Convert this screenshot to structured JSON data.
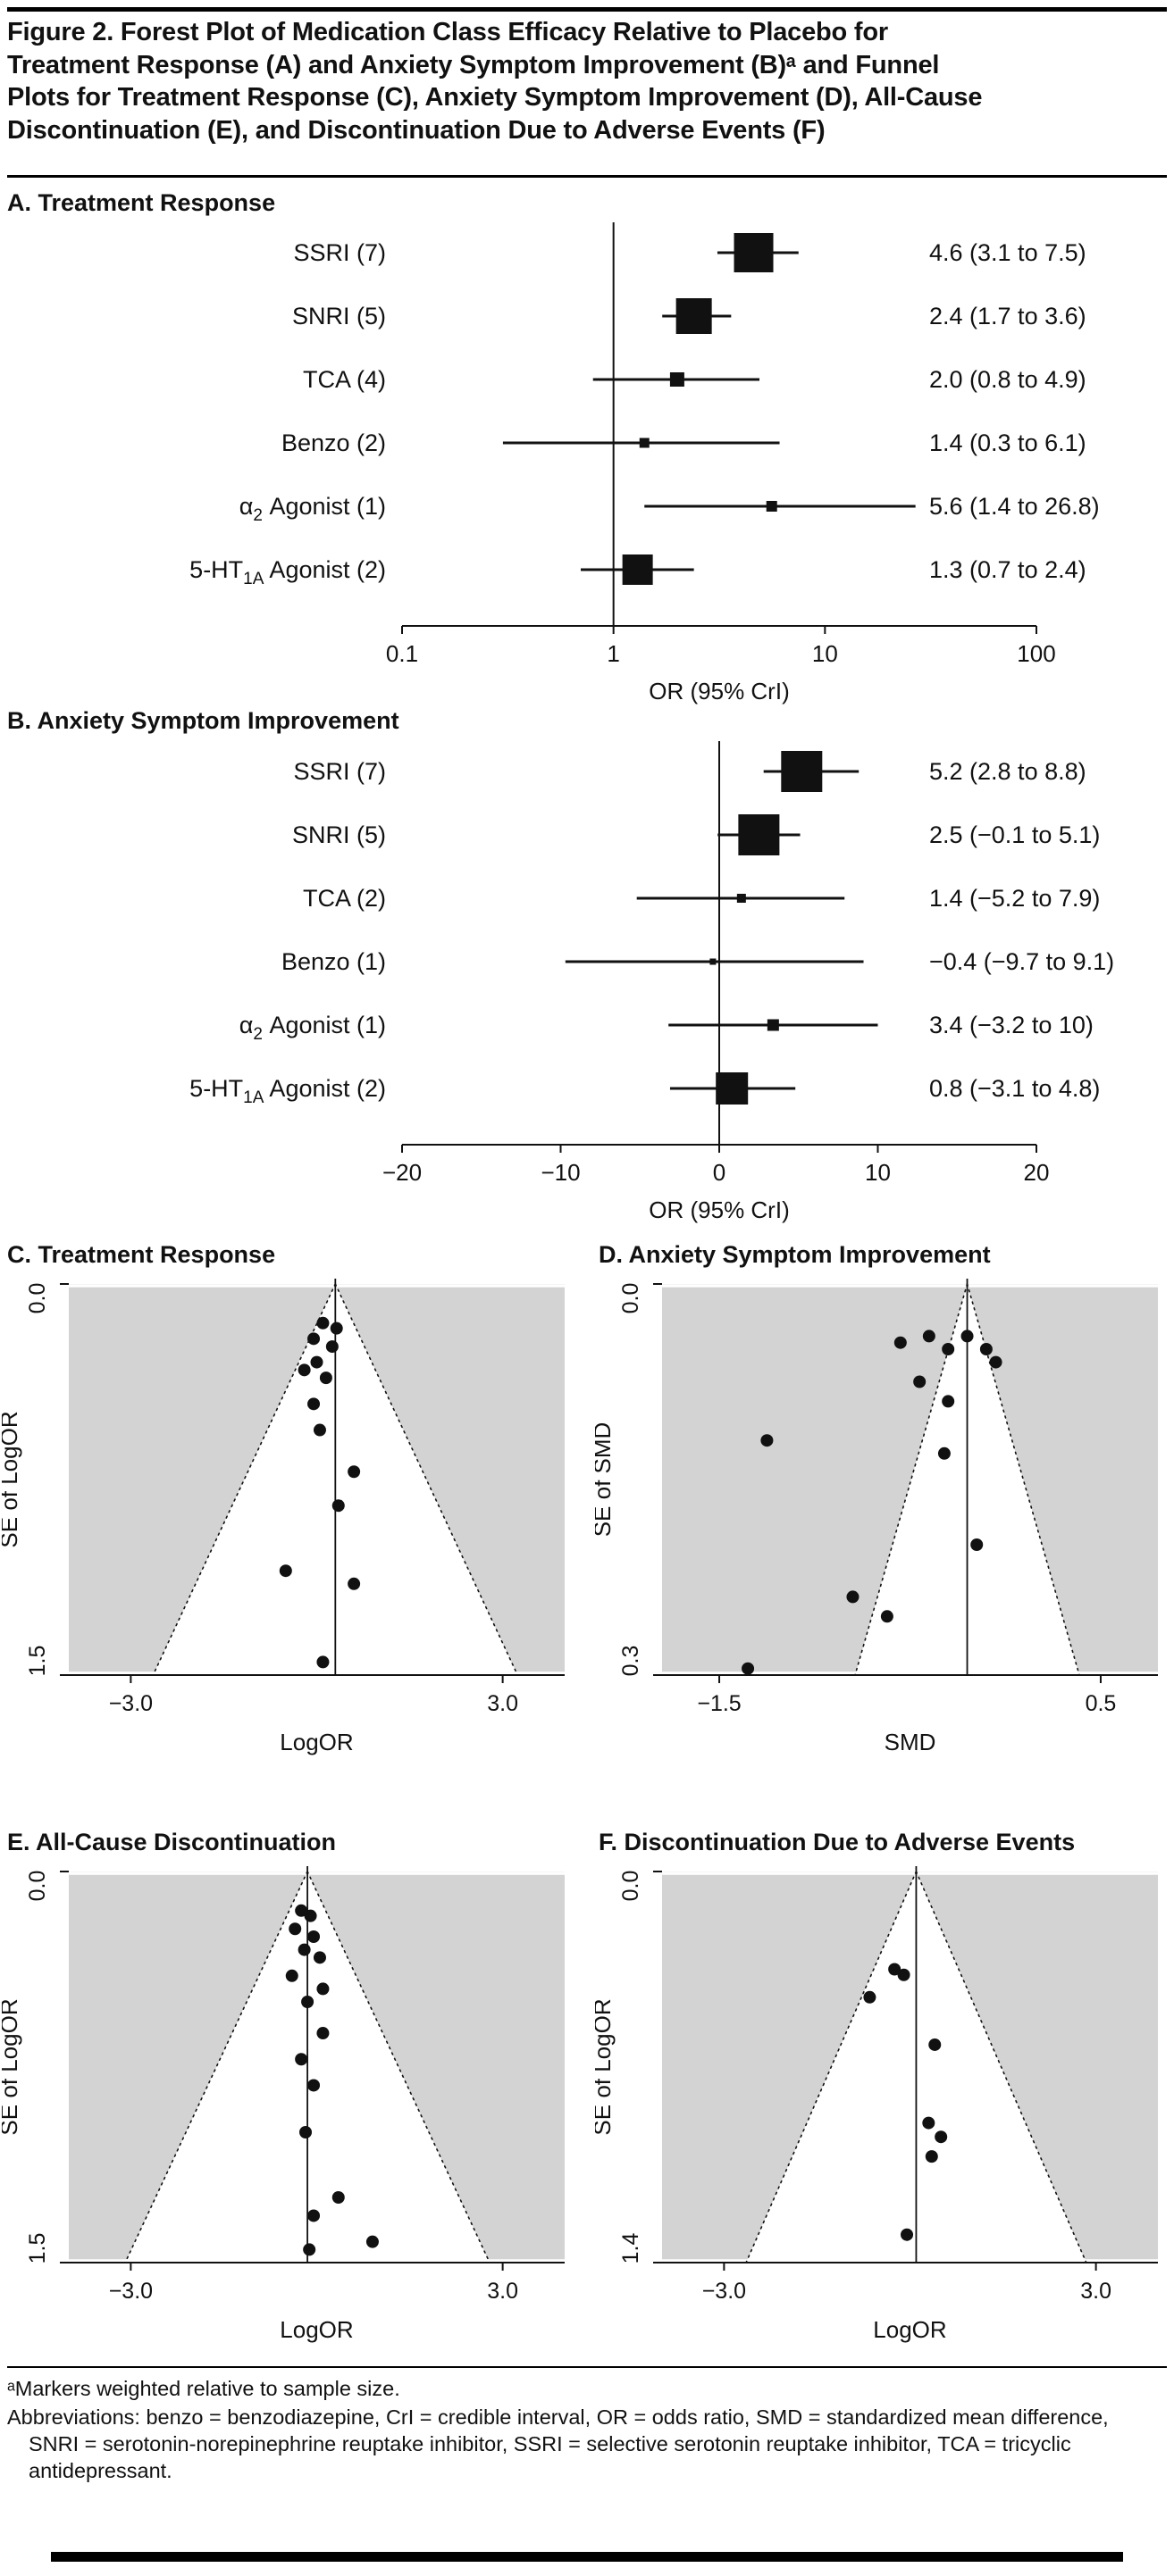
{
  "figure": {
    "title_lines": [
      "Figure 2. Forest Plot of Medication Class Efficacy Relative to Placebo for",
      "Treatment Response (A) and Anxiety Symptom Improvement (B)ᵃ and Funnel",
      "Plots for Treatment Response (C), Anxiety Symptom Improvement (D), All-Cause",
      "Discontinuation (E), and Discontinuation Due to Adverse Events (F)"
    ],
    "footnote_marker": "ᵃMarkers weighted relative to sample size.",
    "footnote_abbreviations": "Abbreviations: benzo = benzodiazepine, CrI = credible interval, OR = odds ratio, SMD = standardized mean difference, SNRI = serotonin-norepinephrine reuptake inhibitor, SSRI = selective serotonin reuptake inhibitor, TCA = tricyclic antidepressant."
  },
  "colors": {
    "text": "#111111",
    "marker": "#111111",
    "funnel_bg": "#d3d3d3",
    "white": "#ffffff"
  },
  "chart_data": [
    {
      "id": "forest_a",
      "type": "forest",
      "title": "A. Treatment Response",
      "xlabel": "OR (95% CrI)",
      "x_scale": "log",
      "x_ticks": [
        0.1,
        1,
        10,
        100
      ],
      "x_tick_labels": [
        "0.1",
        "1",
        "10",
        "100"
      ],
      "ref_line": 1,
      "rows": [
        {
          "label": "SSRI (7)",
          "est": 4.6,
          "lo": 3.1,
          "hi": 7.5,
          "text": "4.6 (3.1 to 7.5)",
          "weight": 44
        },
        {
          "label": "SNRI (5)",
          "est": 2.4,
          "lo": 1.7,
          "hi": 3.6,
          "text": "2.4 (1.7 to 3.6)",
          "weight": 40
        },
        {
          "label": "TCA (4)",
          "est": 2.0,
          "lo": 0.8,
          "hi": 4.9,
          "text": "2.0 (0.8 to 4.9)",
          "weight": 16
        },
        {
          "label": "Benzo (2)",
          "est": 1.4,
          "lo": 0.3,
          "hi": 6.1,
          "text": "1.4 (0.3 to 6.1)",
          "weight": 11
        },
        {
          "label": "α_{2} Agonist (1)",
          "est": 5.6,
          "lo": 1.4,
          "hi": 26.8,
          "text": "5.6 (1.4 to 26.8)",
          "weight": 12
        },
        {
          "label": "5-HT_{1A} Agonist (2)",
          "est": 1.3,
          "lo": 0.7,
          "hi": 2.4,
          "text": "1.3 (0.7 to 2.4)",
          "weight": 34
        }
      ]
    },
    {
      "id": "forest_b",
      "type": "forest",
      "title": "B. Anxiety Symptom Improvement",
      "xlabel": "OR (95% CrI)",
      "x_scale": "linear",
      "x_ticks": [
        -20,
        -10,
        0,
        10,
        20
      ],
      "x_tick_labels": [
        "−20",
        "−10",
        "0",
        "10",
        "20"
      ],
      "ref_line": 0,
      "rows": [
        {
          "label": "SSRI (7)",
          "est": 5.2,
          "lo": 2.8,
          "hi": 8.8,
          "text": "5.2 (2.8 to 8.8)",
          "weight": 46
        },
        {
          "label": "SNRI (5)",
          "est": 2.5,
          "lo": -0.1,
          "hi": 5.1,
          "text": "2.5 (−0.1 to 5.1)",
          "weight": 46
        },
        {
          "label": "TCA (2)",
          "est": 1.4,
          "lo": -5.2,
          "hi": 7.9,
          "text": "1.4 (−5.2 to 7.9)",
          "weight": 10
        },
        {
          "label": "Benzo (1)",
          "est": -0.4,
          "lo": -9.7,
          "hi": 9.1,
          "text": "−0.4 (−9.7 to 9.1)",
          "weight": 7
        },
        {
          "label": "α_{2} Agonist (1)",
          "est": 3.4,
          "lo": -3.2,
          "hi": 10,
          "text": "3.4 (−3.2 to 10)",
          "weight": 13
        },
        {
          "label": "5-HT_{1A} Agonist (2)",
          "est": 0.8,
          "lo": -3.1,
          "hi": 4.8,
          "text": "0.8 (−3.1 to 4.8)",
          "weight": 36
        }
      ]
    },
    {
      "id": "funnel_c",
      "type": "funnel",
      "title": "C. Treatment Response",
      "xlabel": "LogOR",
      "ylabel": "SE of LogOR",
      "x_range": [
        -4,
        4
      ],
      "x_ticks": [
        -3,
        3
      ],
      "x_tick_labels": [
        "−3.0",
        "3.0"
      ],
      "se_max": 1.5,
      "y_tick_labels": [
        "0.0",
        "1.5"
      ],
      "center": 0.3,
      "points": [
        [
          0.1,
          0.15
        ],
        [
          0.32,
          0.17
        ],
        [
          -0.05,
          0.21
        ],
        [
          0.25,
          0.24
        ],
        [
          0.0,
          0.3
        ],
        [
          -0.2,
          0.33
        ],
        [
          0.15,
          0.36
        ],
        [
          -0.05,
          0.46
        ],
        [
          0.05,
          0.56
        ],
        [
          0.6,
          0.72
        ],
        [
          0.35,
          0.85
        ],
        [
          -0.5,
          1.1
        ],
        [
          0.6,
          1.15
        ],
        [
          0.1,
          1.45
        ]
      ]
    },
    {
      "id": "funnel_d",
      "type": "funnel",
      "title": "D. Anxiety Symptom Improvement",
      "xlabel": "SMD",
      "ylabel": "SE of SMD",
      "x_range": [
        -1.8,
        0.8
      ],
      "x_ticks": [
        -1.5,
        0.5
      ],
      "x_tick_labels": [
        "−1.5",
        "0.5"
      ],
      "se_max": 0.3,
      "y_tick_labels": [
        "0.0",
        "0.3"
      ],
      "center": -0.2,
      "points": [
        [
          -0.55,
          0.045
        ],
        [
          -0.4,
          0.04
        ],
        [
          -0.3,
          0.05
        ],
        [
          -0.2,
          0.04
        ],
        [
          -0.1,
          0.05
        ],
        [
          -0.05,
          0.06
        ],
        [
          -0.45,
          0.075
        ],
        [
          -0.3,
          0.09
        ],
        [
          -1.25,
          0.12
        ],
        [
          -0.32,
          0.13
        ],
        [
          -0.15,
          0.2
        ],
        [
          -0.8,
          0.24
        ],
        [
          -0.62,
          0.255
        ],
        [
          -1.35,
          0.295
        ]
      ]
    },
    {
      "id": "funnel_e",
      "type": "funnel",
      "title": "E. All-Cause Discontinuation",
      "xlabel": "LogOR",
      "ylabel": "SE of LogOR",
      "x_range": [
        -4,
        4
      ],
      "x_ticks": [
        -3,
        3
      ],
      "x_tick_labels": [
        "−3.0",
        "3.0"
      ],
      "se_max": 1.5,
      "y_tick_labels": [
        "0.0",
        "1.5"
      ],
      "center": -0.15,
      "points": [
        [
          -0.25,
          0.15
        ],
        [
          -0.1,
          0.17
        ],
        [
          -0.35,
          0.22
        ],
        [
          -0.05,
          0.25
        ],
        [
          -0.2,
          0.3
        ],
        [
          0.05,
          0.33
        ],
        [
          -0.4,
          0.4
        ],
        [
          0.1,
          0.45
        ],
        [
          -0.15,
          0.5
        ],
        [
          0.1,
          0.62
        ],
        [
          -0.25,
          0.72
        ],
        [
          -0.05,
          0.82
        ],
        [
          -0.18,
          1.0
        ],
        [
          0.35,
          1.25
        ],
        [
          -0.05,
          1.32
        ],
        [
          0.9,
          1.42
        ],
        [
          -0.12,
          1.45
        ]
      ]
    },
    {
      "id": "funnel_f",
      "type": "funnel",
      "title": "F. Discontinuation Due to Adverse Events",
      "xlabel": "LogOR",
      "ylabel": "SE of LogOR",
      "x_range": [
        -4,
        4
      ],
      "x_ticks": [
        -3,
        3
      ],
      "x_tick_labels": [
        "−3.0",
        "3.0"
      ],
      "se_max": 1.4,
      "y_tick_labels": [
        "0.0",
        "1.4"
      ],
      "center": 0.1,
      "points": [
        [
          -0.25,
          0.35
        ],
        [
          -0.1,
          0.37
        ],
        [
          -0.65,
          0.45
        ],
        [
          0.4,
          0.62
        ],
        [
          0.3,
          0.9
        ],
        [
          0.5,
          0.95
        ],
        [
          0.35,
          1.02
        ],
        [
          -0.05,
          1.3
        ]
      ]
    }
  ]
}
